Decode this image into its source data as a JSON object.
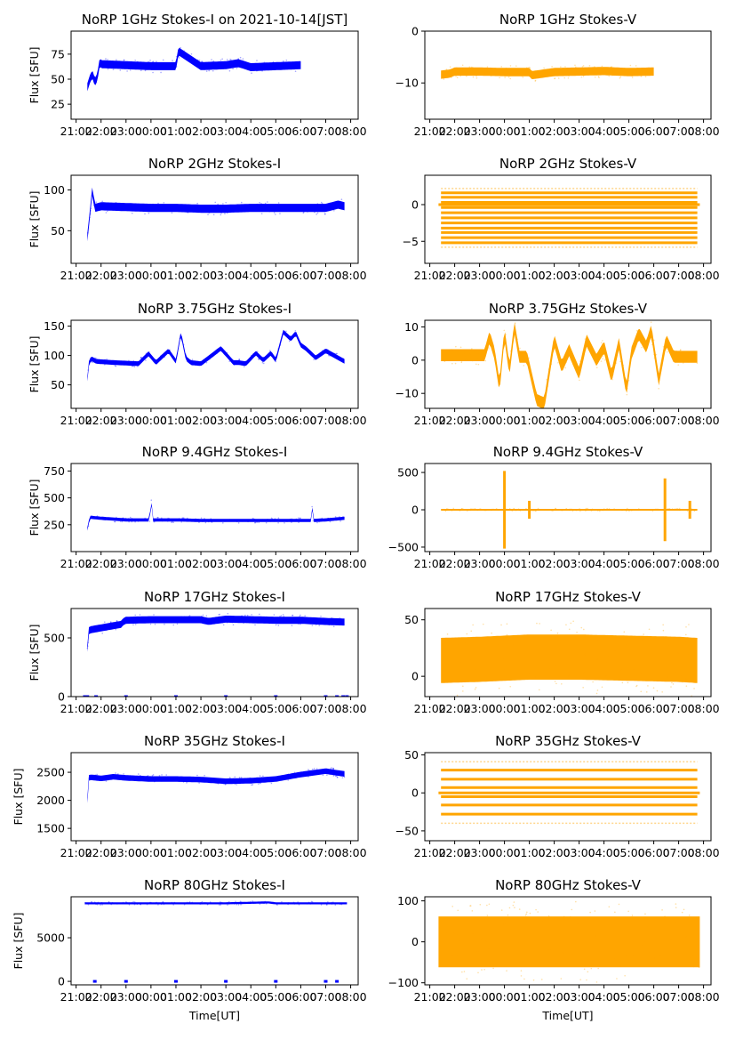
{
  "figure": {
    "background": "#ffffff",
    "colors": {
      "stokes_i": "#0000ff",
      "stokes_v": "#ffa500"
    }
  },
  "chart_data": [
    {
      "type": "scatter",
      "title": "NoRP 1GHz Stokes-I on 2021-10-14[JST]",
      "xlabel": "",
      "ylabel": "Flux [SFU]",
      "ylim": [
        10,
        98
      ],
      "yticks": [
        25,
        50,
        75
      ],
      "xticks": [
        "21:00",
        "22:00",
        "23:00",
        "00:00",
        "01:00",
        "02:00",
        "03:00",
        "04:00",
        "05:00",
        "06:00",
        "07:00",
        "08:00"
      ],
      "xlim_hours": [
        -0.2,
        11.3
      ],
      "data_range_hours": [
        0.45,
        9.0
      ],
      "color": "#0000ff",
      "series": [
        {
          "name": "Stokes-I",
          "x_hours": [
            0.45,
            0.55,
            0.65,
            0.75,
            0.85,
            0.95,
            1.0,
            2.0,
            3.0,
            4.0,
            4.1,
            5.0,
            6.0,
            6.5,
            7.0,
            8.0,
            9.0
          ],
          "values": [
            42,
            50,
            55,
            47,
            52,
            68,
            65,
            64,
            63,
            63,
            78,
            63,
            64,
            66,
            62,
            63,
            64
          ]
        }
      ],
      "band_halfwidth": 4
    },
    {
      "type": "scatter",
      "title": "NoRP 1GHz Stokes-V",
      "xlabel": "",
      "ylabel": "",
      "ylim": [
        -17,
        0
      ],
      "yticks": [
        -10,
        0
      ],
      "xticks": [
        "21:00",
        "22:00",
        "23:00",
        "00:00",
        "01:00",
        "02:00",
        "03:00",
        "04:00",
        "05:00",
        "06:00",
        "07:00",
        "08:00"
      ],
      "xlim_hours": [
        -0.2,
        11.3
      ],
      "data_range_hours": [
        0.45,
        9.0
      ],
      "color": "#ffa500",
      "series": [
        {
          "name": "Stokes-V",
          "x_hours": [
            0.45,
            0.8,
            1.0,
            2.0,
            3.0,
            4.0,
            4.1,
            5.0,
            6.0,
            7.0,
            8.0,
            9.0
          ],
          "values": [
            -8.4,
            -8.2,
            -7.8,
            -7.8,
            -7.9,
            -7.9,
            -8.5,
            -7.9,
            -7.8,
            -7.7,
            -7.9,
            -7.8
          ]
        }
      ],
      "band_halfwidth": 0.8
    },
    {
      "type": "scatter",
      "title": "NoRP 2GHz Stokes-I",
      "xlabel": "",
      "ylabel": "Flux [SFU]",
      "ylim": [
        10,
        118
      ],
      "yticks": [
        50,
        100
      ],
      "xticks": [
        "21:00",
        "22:00",
        "23:00",
        "00:00",
        "01:00",
        "02:00",
        "03:00",
        "04:00",
        "05:00",
        "06:00",
        "07:00",
        "08:00"
      ],
      "xlim_hours": [
        -0.2,
        11.3
      ],
      "data_range_hours": [
        0.45,
        10.75
      ],
      "color": "#0000ff",
      "series": [
        {
          "name": "Stokes-I",
          "x_hours": [
            0.45,
            0.55,
            0.65,
            0.75,
            1.0,
            2.0,
            3.0,
            4.0,
            5.0,
            6.0,
            7.0,
            8.0,
            9.0,
            10.0,
            10.5,
            10.75
          ],
          "values": [
            42,
            70,
            100,
            78,
            80,
            79,
            78,
            78,
            77,
            77,
            78,
            78,
            78,
            78,
            82,
            80
          ]
        }
      ],
      "band_halfwidth": 5
    },
    {
      "type": "scatter",
      "title": "NoRP 2GHz Stokes-V",
      "xlabel": "",
      "ylabel": "",
      "ylim": [
        -8,
        4
      ],
      "yticks": [
        -5,
        0
      ],
      "xticks": [
        "21:00",
        "22:00",
        "23:00",
        "00:00",
        "01:00",
        "02:00",
        "03:00",
        "04:00",
        "05:00",
        "06:00",
        "07:00",
        "08:00"
      ],
      "xlim_hours": [
        -0.2,
        11.3
      ],
      "data_range_hours": [
        0.45,
        10.75
      ],
      "color": "#ffa500",
      "quantized_levels": [
        2.2,
        1.6,
        1.0,
        0.3,
        -0.4,
        -1.1,
        -1.8,
        -2.5,
        -3.2,
        -3.8,
        -4.5,
        -5.2,
        -5.8
      ],
      "series": [
        {
          "name": "Stokes-V",
          "x_hours": [
            0.45,
            10.75
          ],
          "values": [
            -1.8,
            -1.8
          ]
        }
      ]
    },
    {
      "type": "scatter",
      "title": "NoRP 3.75GHz Stokes-I",
      "xlabel": "",
      "ylabel": "Flux [SFU]",
      "ylim": [
        10,
        160
      ],
      "yticks": [
        50,
        100,
        150
      ],
      "xticks": [
        "21:00",
        "22:00",
        "23:00",
        "00:00",
        "01:00",
        "02:00",
        "03:00",
        "04:00",
        "05:00",
        "06:00",
        "07:00",
        "08:00"
      ],
      "xlim_hours": [
        -0.2,
        11.3
      ],
      "data_range_hours": [
        0.45,
        10.75
      ],
      "color": "#0000ff",
      "series": [
        {
          "name": "Stokes-I",
          "x_hours": [
            0.45,
            0.5,
            0.6,
            0.8,
            1.5,
            2.5,
            2.9,
            3.2,
            3.7,
            4.0,
            4.2,
            4.4,
            4.6,
            5.0,
            5.8,
            6.3,
            6.5,
            6.8,
            7.2,
            7.5,
            7.8,
            8.0,
            8.3,
            8.6,
            8.8,
            9.0,
            9.2,
            9.6,
            10.0,
            10.5,
            10.75
          ],
          "values": [
            60,
            85,
            95,
            90,
            88,
            86,
            103,
            88,
            108,
            90,
            138,
            95,
            88,
            86,
            112,
            88,
            88,
            86,
            104,
            92,
            104,
            92,
            140,
            128,
            138,
            118,
            112,
            96,
            108,
            96,
            90
          ]
        }
      ],
      "band_halfwidth": 4
    },
    {
      "type": "scatter",
      "title": "NoRP 3.75GHz Stokes-V",
      "xlabel": "",
      "ylabel": "",
      "ylim": [
        -14.5,
        12
      ],
      "yticks": [
        -10,
        0,
        10
      ],
      "xticks": [
        "21:00",
        "22:00",
        "23:00",
        "00:00",
        "01:00",
        "02:00",
        "03:00",
        "04:00",
        "05:00",
        "06:00",
        "07:00",
        "08:00"
      ],
      "xlim_hours": [
        -0.2,
        11.3
      ],
      "data_range_hours": [
        0.45,
        10.75
      ],
      "color": "#ffa500",
      "series": [
        {
          "name": "Stokes-V",
          "x_hours": [
            0.45,
            1.5,
            2.2,
            2.4,
            2.6,
            2.8,
            3.0,
            3.2,
            3.4,
            3.6,
            3.9,
            4.3,
            4.6,
            5.0,
            5.3,
            5.6,
            6.0,
            6.3,
            6.7,
            7.0,
            7.3,
            7.6,
            7.9,
            8.1,
            8.4,
            8.7,
            8.9,
            9.2,
            9.5,
            9.8,
            10.1,
            10.4,
            10.75
          ],
          "values": [
            1.5,
            1.5,
            1.5,
            7,
            2,
            -8,
            8,
            -3,
            10,
            1,
            1,
            -12,
            -13,
            6,
            -2,
            3,
            -4,
            6,
            0,
            4,
            -5,
            5,
            -9,
            2,
            8,
            4,
            9,
            -6,
            6,
            1,
            1,
            1,
            1
          ]
        }
      ],
      "band_halfwidth": 1.8
    },
    {
      "type": "scatter",
      "title": "NoRP 9.4GHz Stokes-I",
      "xlabel": "",
      "ylabel": "Flux [SFU]",
      "ylim": [
        0,
        820
      ],
      "yticks": [
        250,
        500,
        750
      ],
      "xticks": [
        "21:00",
        "22:00",
        "23:00",
        "00:00",
        "01:00",
        "02:00",
        "03:00",
        "04:00",
        "05:00",
        "06:00",
        "07:00",
        "08:00"
      ],
      "xlim_hours": [
        -0.2,
        11.3
      ],
      "data_range_hours": [
        0.45,
        10.75
      ],
      "color": "#0000ff",
      "series": [
        {
          "name": "Stokes-I",
          "x_hours": [
            0.45,
            0.55,
            1.0,
            2.0,
            2.95,
            3.0,
            3.05,
            4.0,
            5.0,
            6.0,
            7.0,
            8.0,
            9.0,
            9.4,
            9.45,
            9.5,
            10.0,
            10.75
          ],
          "values": [
            210,
            320,
            310,
            295,
            295,
            580,
            295,
            295,
            290,
            290,
            290,
            290,
            290,
            290,
            430,
            290,
            295,
            310
          ]
        }
      ],
      "band_halfwidth": 15
    },
    {
      "type": "scatter",
      "title": "NoRP 9.4GHz Stokes-V",
      "xlabel": "",
      "ylabel": "",
      "ylim": [
        -560,
        620
      ],
      "yticks": [
        -500,
        0,
        500
      ],
      "xticks": [
        "21:00",
        "22:00",
        "23:00",
        "00:00",
        "01:00",
        "02:00",
        "03:00",
        "04:00",
        "05:00",
        "06:00",
        "07:00",
        "08:00"
      ],
      "xlim_hours": [
        -0.2,
        11.3
      ],
      "data_range_hours": [
        0.45,
        10.75
      ],
      "color": "#ffa500",
      "spikes_hours": [
        3.0,
        4.0,
        9.45,
        10.45
      ],
      "series": [
        {
          "name": "Stokes-V",
          "x_hours": [
            0.45,
            10.75
          ],
          "values": [
            0,
            0
          ]
        }
      ],
      "band_halfwidth": 12
    },
    {
      "type": "scatter",
      "title": "NoRP 17GHz Stokes-I",
      "xlabel": "",
      "ylabel": "Flux [SFU]",
      "ylim": [
        0,
        750
      ],
      "yticks": [
        0,
        500
      ],
      "xticks": [
        "21:00",
        "22:00",
        "23:00",
        "00:00",
        "01:00",
        "02:00",
        "03:00",
        "04:00",
        "05:00",
        "06:00",
        "07:00",
        "08:00"
      ],
      "xlim_hours": [
        -0.2,
        11.3
      ],
      "data_range_hours": [
        0.45,
        10.75
      ],
      "color": "#0000ff",
      "zero_markers_hours": [
        0.35,
        0.45,
        0.8,
        2.0,
        4.0,
        6.0,
        8.0,
        10.0,
        10.45,
        10.7,
        10.85
      ],
      "series": [
        {
          "name": "Stokes-I",
          "x_hours": [
            0.45,
            0.5,
            0.6,
            1.0,
            1.8,
            1.9,
            2.0,
            3.0,
            4.0,
            5.0,
            5.3,
            6.0,
            7.0,
            8.0,
            9.0,
            10.0,
            10.75
          ],
          "values": [
            410,
            560,
            570,
            585,
            615,
            640,
            650,
            655,
            655,
            655,
            640,
            660,
            655,
            650,
            650,
            640,
            635
          ]
        }
      ],
      "band_halfwidth": 30
    },
    {
      "type": "scatter",
      "title": "NoRP 17GHz Stokes-V",
      "xlabel": "",
      "ylabel": "",
      "ylim": [
        -18,
        60
      ],
      "yticks": [
        0,
        50
      ],
      "xticks": [
        "21:00",
        "22:00",
        "23:00",
        "00:00",
        "01:00",
        "02:00",
        "03:00",
        "04:00",
        "05:00",
        "06:00",
        "07:00",
        "08:00"
      ],
      "xlim_hours": [
        -0.2,
        11.3
      ],
      "data_range_hours": [
        0.45,
        10.75
      ],
      "color": "#ffa500",
      "series": [
        {
          "name": "Stokes-V",
          "x_hours": [
            0.45,
            2.0,
            4.0,
            6.0,
            8.0,
            10.0,
            10.75
          ],
          "values": [
            14,
            15,
            17,
            17,
            16,
            15,
            14
          ]
        }
      ],
      "band_halfwidth": 20
    },
    {
      "type": "scatter",
      "title": "NoRP 35GHz Stokes-I",
      "xlabel": "",
      "ylabel": "Flux [SFU]",
      "ylim": [
        1280,
        2850
      ],
      "yticks": [
        1500,
        2000,
        2500
      ],
      "xticks": [
        "21:00",
        "22:00",
        "23:00",
        "00:00",
        "01:00",
        "02:00",
        "03:00",
        "04:00",
        "05:00",
        "06:00",
        "07:00",
        "08:00"
      ],
      "xlim_hours": [
        -0.2,
        11.3
      ],
      "data_range_hours": [
        0.45,
        10.75
      ],
      "color": "#0000ff",
      "series": [
        {
          "name": "Stokes-I",
          "x_hours": [
            0.45,
            0.5,
            0.6,
            1.0,
            1.5,
            2.0,
            3.0,
            4.0,
            5.0,
            6.0,
            7.0,
            8.0,
            8.5,
            9.0,
            10.0,
            10.75
          ],
          "values": [
            2000,
            2400,
            2410,
            2390,
            2420,
            2400,
            2380,
            2380,
            2370,
            2340,
            2350,
            2380,
            2420,
            2460,
            2520,
            2470
          ]
        }
      ],
      "band_halfwidth": 50
    },
    {
      "type": "scatter",
      "title": "NoRP 35GHz Stokes-V",
      "xlabel": "",
      "ylabel": "",
      "ylim": [
        -63,
        53
      ],
      "yticks": [
        -50,
        0,
        50
      ],
      "xticks": [
        "21:00",
        "22:00",
        "23:00",
        "00:00",
        "01:00",
        "02:00",
        "03:00",
        "04:00",
        "05:00",
        "06:00",
        "07:00",
        "08:00"
      ],
      "xlim_hours": [
        -0.2,
        11.3
      ],
      "data_range_hours": [
        0.45,
        10.75
      ],
      "color": "#ffa500",
      "quantized_levels": [
        41,
        30,
        18,
        7,
        -5,
        -16,
        -28,
        -40
      ],
      "series": [
        {
          "name": "Stokes-V",
          "x_hours": [
            0.45,
            10.75
          ],
          "values": [
            0,
            0
          ]
        }
      ]
    },
    {
      "type": "scatter",
      "title": "NoRP 80GHz Stokes-I",
      "xlabel": "Time[UT]",
      "ylabel": "Flux [SFU]",
      "ylim": [
        -400,
        9700
      ],
      "yticks": [
        0,
        5000
      ],
      "xticks": [
        "21:00",
        "22:00",
        "23:00",
        "00:00",
        "01:00",
        "02:00",
        "03:00",
        "04:00",
        "05:00",
        "06:00",
        "07:00",
        "08:00"
      ],
      "xlim_hours": [
        -0.2,
        11.3
      ],
      "data_range_hours": [
        0.35,
        10.85
      ],
      "color": "#0000ff",
      "zero_markers_hours": [
        0.75,
        2.0,
        4.0,
        6.0,
        8.0,
        10.0,
        10.45
      ],
      "series": [
        {
          "name": "Stokes-I",
          "x_hours": [
            0.35,
            2.0,
            4.0,
            6.0,
            7.7,
            8.0,
            10.0,
            10.85
          ],
          "values": [
            8950,
            8950,
            8950,
            8950,
            9050,
            8950,
            8950,
            8950
          ]
        }
      ],
      "band_halfwidth": 120
    },
    {
      "type": "scatter",
      "title": "NoRP 80GHz Stokes-V",
      "xlabel": "Time[UT]",
      "ylabel": "",
      "ylim": [
        -105,
        110
      ],
      "yticks": [
        -100,
        0,
        100
      ],
      "xticks": [
        "21:00",
        "22:00",
        "23:00",
        "00:00",
        "01:00",
        "02:00",
        "03:00",
        "04:00",
        "05:00",
        "06:00",
        "07:00",
        "08:00"
      ],
      "xlim_hours": [
        -0.2,
        11.3
      ],
      "data_range_hours": [
        0.35,
        10.85
      ],
      "color": "#ffa500",
      "series": [
        {
          "name": "Stokes-V",
          "x_hours": [
            0.35,
            2.0,
            4.0,
            6.0,
            8.0,
            10.0,
            10.85
          ],
          "values": [
            0,
            0,
            0,
            0,
            0,
            0,
            0
          ]
        }
      ],
      "band_halfwidth": 62
    }
  ]
}
